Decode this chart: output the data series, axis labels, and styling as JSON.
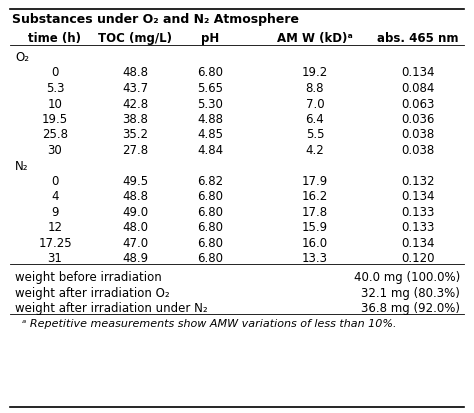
{
  "title": "Substances under O₂ and N₂ Atmosphere",
  "headers": [
    "time (h)",
    "TOC (mg/L)",
    "pH",
    "AM W (kD)ᵃ",
    "abs. 465 nm"
  ],
  "o2_label": "O₂",
  "n2_label": "N₂",
  "o2_rows": [
    [
      "0",
      "48.8",
      "6.80",
      "19.2",
      "0.134"
    ],
    [
      "5.3",
      "43.7",
      "5.65",
      "8.8",
      "0.084"
    ],
    [
      "10",
      "42.8",
      "5.30",
      "7.0",
      "0.063"
    ],
    [
      "19.5",
      "38.8",
      "4.88",
      "6.4",
      "0.036"
    ],
    [
      "25.8",
      "35.2",
      "4.85",
      "5.5",
      "0.038"
    ],
    [
      "30",
      "27.8",
      "4.84",
      "4.2",
      "0.038"
    ]
  ],
  "n2_rows": [
    [
      "0",
      "49.5",
      "6.82",
      "17.9",
      "0.132"
    ],
    [
      "4",
      "48.8",
      "6.80",
      "16.2",
      "0.134"
    ],
    [
      "9",
      "49.0",
      "6.80",
      "17.8",
      "0.133"
    ],
    [
      "12",
      "48.0",
      "6.80",
      "15.9",
      "0.133"
    ],
    [
      "17.25",
      "47.0",
      "6.80",
      "16.0",
      "0.134"
    ],
    [
      "31",
      "48.9",
      "6.80",
      "13.3",
      "0.120"
    ]
  ],
  "footer_rows": [
    [
      "weight before irradiation",
      "40.0 mg (100.0%)"
    ],
    [
      "weight after irradiation O₂",
      "32.1 mg (80.3%)"
    ],
    [
      "weight after irradiation under N₂",
      "36.8 mg (92.0%)"
    ]
  ],
  "footnote": "ᵃ Repetitive measurements show AMW variations of less than 10%.",
  "bg_color": "#ffffff",
  "text_color": "#000000",
  "font_size": 8.5,
  "title_font_size": 9.0
}
